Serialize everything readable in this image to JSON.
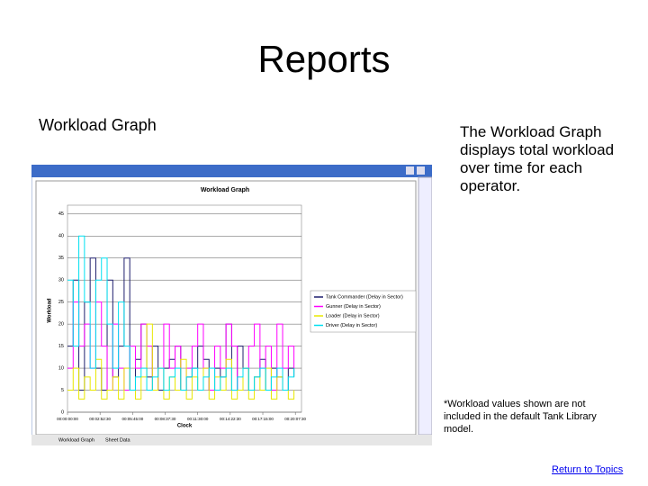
{
  "title": "Reports",
  "left_heading": "Workload Graph",
  "description": "The Workload Graph displays total workload over time for each operator.",
  "footnote": "*Workload values shown are not included in the default Tank Library model.",
  "link": "Return to Topics",
  "tabs": [
    "Workload Graph",
    "Sheet Data"
  ],
  "chart_data": {
    "type": "line",
    "title": "Workload Graph",
    "x_label": "Clock",
    "y_label": "Workload",
    "x": [
      0,
      30,
      60,
      90,
      120,
      150,
      180,
      210,
      240,
      270,
      300,
      330,
      360,
      390,
      420,
      450,
      480,
      510,
      540,
      570,
      600,
      630,
      660,
      690,
      720,
      750,
      780,
      810,
      840,
      870,
      900,
      930,
      960,
      990,
      1020,
      1050,
      1080,
      1110,
      1140,
      1170,
      1200
    ],
    "series": [
      {
        "name": "Tank Commander (Delay in Sector)",
        "color": "#1f1f6e",
        "values": [
          15,
          30,
          5,
          25,
          35,
          10,
          5,
          30,
          8,
          15,
          35,
          5,
          12,
          20,
          8,
          15,
          5,
          10,
          12,
          15,
          5,
          8,
          10,
          15,
          12,
          5,
          10,
          8,
          20,
          5,
          15,
          10,
          5,
          8,
          12,
          5,
          10,
          8,
          5,
          10,
          8
        ]
      },
      {
        "name": "Gunner (Delay in Sector)",
        "color": "#ff00ff",
        "values": [
          10,
          25,
          15,
          20,
          10,
          25,
          15,
          5,
          20,
          10,
          5,
          15,
          10,
          20,
          15,
          5,
          10,
          20,
          10,
          15,
          5,
          10,
          15,
          20,
          10,
          5,
          15,
          10,
          20,
          15,
          5,
          10,
          15,
          20,
          10,
          15,
          5,
          20,
          10,
          15,
          10
        ]
      },
      {
        "name": "Loader (Delay in Sector)",
        "color": "#e8e800",
        "values": [
          5,
          10,
          3,
          8,
          5,
          12,
          3,
          5,
          8,
          3,
          10,
          5,
          3,
          8,
          20,
          5,
          10,
          3,
          8,
          5,
          12,
          3,
          8,
          5,
          10,
          3,
          8,
          5,
          12,
          3,
          5,
          10,
          3,
          8,
          5,
          10,
          3,
          8,
          5,
          3,
          5
        ]
      },
      {
        "name": "Driver (Delay in Sector)",
        "color": "#00e0f0",
        "values": [
          30,
          15,
          40,
          25,
          10,
          30,
          35,
          20,
          10,
          25,
          15,
          5,
          8,
          10,
          5,
          8,
          10,
          5,
          8,
          10,
          5,
          8,
          10,
          5,
          8,
          10,
          5,
          8,
          10,
          5,
          8,
          10,
          5,
          8,
          10,
          5,
          8,
          10,
          5,
          8,
          10
        ]
      }
    ],
    "xlim": [
      0,
      1240
    ],
    "xticks": [
      {
        "value": 0,
        "label": "00:00:00:00"
      },
      {
        "value": 172.5,
        "label": "00:02:52:30"
      },
      {
        "value": 345,
        "label": "00:05:45:00"
      },
      {
        "value": 517.5,
        "label": "00:08:37:30"
      },
      {
        "value": 690,
        "label": "00:11:30:00"
      },
      {
        "value": 862.5,
        "label": "00:14:22:30"
      },
      {
        "value": 1035,
        "label": "00:17:15:00"
      },
      {
        "value": 1207.5,
        "label": "00:20:07:30"
      }
    ],
    "ylim": [
      0,
      47
    ],
    "yticks": [
      0,
      5,
      10,
      15,
      20,
      25,
      30,
      35,
      40,
      45
    ],
    "grid": true
  }
}
